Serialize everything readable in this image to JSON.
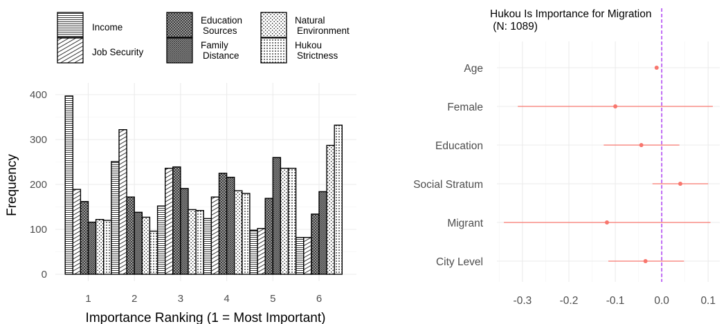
{
  "chart_data": [
    {
      "type": "bar",
      "xlabel": "Importance Ranking (1 = Most Important)",
      "ylabel": "Frequency",
      "categories": [
        "1",
        "2",
        "3",
        "4",
        "5",
        "6"
      ],
      "yticks": [
        "0",
        "100",
        "200",
        "300",
        "400"
      ],
      "ylim": [
        0,
        420
      ],
      "grid": true,
      "legend_position": "top",
      "series": [
        {
          "name": "Income",
          "pattern": "horizontal-lines",
          "values": [
            397,
            251,
            152,
            124,
            98,
            82
          ]
        },
        {
          "name": "Job Security",
          "pattern": "diagonal-lines",
          "values": [
            189,
            322,
            236,
            172,
            102,
            82
          ]
        },
        {
          "name": "Education\nSources",
          "pattern": "crosshatch",
          "values": [
            162,
            172,
            239,
            225,
            169,
            134
          ]
        },
        {
          "name": "Family\nDistance",
          "pattern": "crosshatch-dense",
          "values": [
            116,
            138,
            191,
            216,
            260,
            184
          ]
        },
        {
          "name": "Natural\nEnvironment",
          "pattern": "dots",
          "values": [
            122,
            127,
            144,
            186,
            236,
            287
          ]
        },
        {
          "name": "Hukou\nStrictness",
          "pattern": "grid-dots",
          "values": [
            120,
            96,
            142,
            180,
            236,
            332
          ]
        }
      ]
    },
    {
      "type": "scatter",
      "title": "Hukou Is Importance for Migration\n (N: 1089)",
      "categories": [
        "Age",
        "Female",
        "Education",
        "Social Stratum",
        "Migrant",
        "City Level"
      ],
      "estimates": [
        -0.011,
        -0.1,
        -0.044,
        0.04,
        -0.118,
        -0.035
      ],
      "ci_low": [
        -0.011,
        -0.31,
        -0.125,
        -0.02,
        -0.34,
        -0.115
      ],
      "ci_high": [
        -0.011,
        0.11,
        0.038,
        0.1,
        0.105,
        0.048
      ],
      "xticks": [
        "-0.3",
        "-0.2",
        "-0.1",
        "0.0",
        "0.1"
      ],
      "xlim": [
        -0.355,
        0.125
      ],
      "reference_line": 0.0,
      "point_color": "#f8766d",
      "reference_color": "#a020f0",
      "grid": true
    }
  ]
}
